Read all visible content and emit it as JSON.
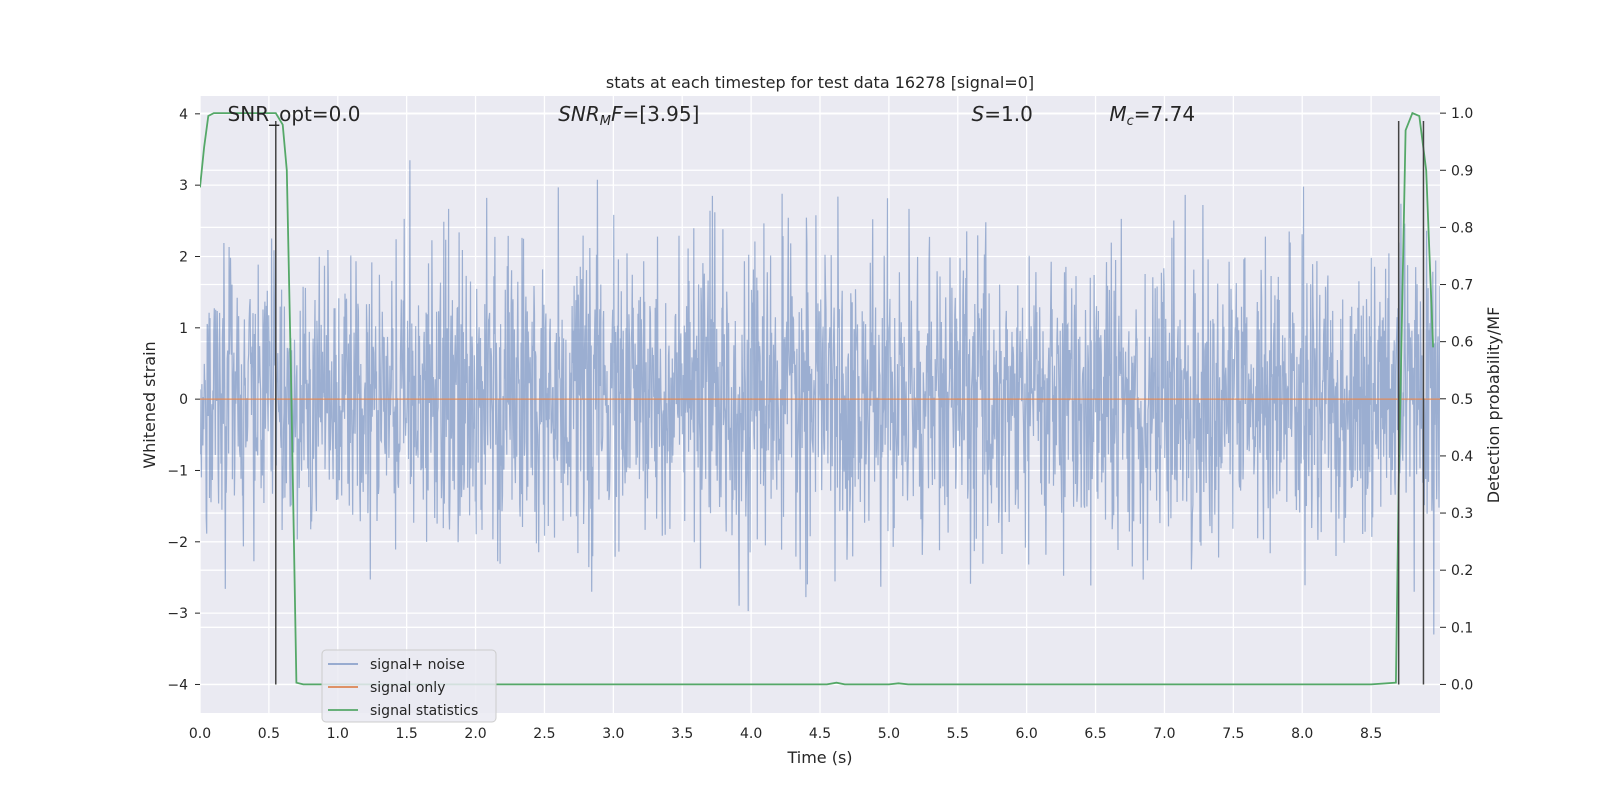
{
  "chart_data": {
    "type": "line",
    "title": "stats at each timestep for test data 16278 [signal=0]",
    "xlabel": "Time (s)",
    "ylabel_left": "Whitened strain",
    "ylabel_right": "Detection probability/MF",
    "xlim": [
      0.0,
      9.0
    ],
    "ylim_left": [
      -4.4,
      4.25
    ],
    "ylim_right": [
      -0.05,
      1.03
    ],
    "x_ticks": [
      "0.0",
      "0.5",
      "1.0",
      "1.5",
      "2.0",
      "2.5",
      "3.0",
      "3.5",
      "4.0",
      "4.5",
      "5.0",
      "5.5",
      "6.0",
      "6.5",
      "7.0",
      "7.5",
      "8.0",
      "8.5"
    ],
    "x_tick_values": [
      0.0,
      0.5,
      1.0,
      1.5,
      2.0,
      2.5,
      3.0,
      3.5,
      4.0,
      4.5,
      5.0,
      5.5,
      6.0,
      6.5,
      7.0,
      7.5,
      8.0,
      8.5
    ],
    "y_left_ticks": [
      "−4",
      "−3",
      "−2",
      "−1",
      "0",
      "1",
      "2",
      "3",
      "4"
    ],
    "y_left_tick_values": [
      -4,
      -3,
      -2,
      -1,
      0,
      1,
      2,
      3,
      4
    ],
    "y_right_ticks": [
      "0.0",
      "0.1",
      "0.2",
      "0.3",
      "0.4",
      "0.5",
      "0.6",
      "0.7",
      "0.8",
      "0.9",
      "1.0"
    ],
    "y_right_tick_values": [
      0.0,
      0.1,
      0.2,
      0.3,
      0.4,
      0.5,
      0.6,
      0.7,
      0.8,
      0.9,
      1.0
    ],
    "annotations": [
      {
        "id": "snr-opt",
        "text": "SNR_opt=0.0",
        "x": 0.2,
        "y": 4.0
      },
      {
        "id": "snr-mf",
        "text": "SNR_MF=[3.95]",
        "x": 2.6,
        "y": 4.0
      },
      {
        "id": "s-value",
        "text": "S=1.0",
        "x": 5.6,
        "y": 4.0
      },
      {
        "id": "mc-value",
        "text": "M_c=7.74",
        "x": 6.6,
        "y": 4.0
      }
    ],
    "legend_position": "lower-left",
    "series": [
      {
        "name": "signal+ noise",
        "color": "#4c72b0",
        "axis": "left",
        "description": "noise-dominated whitened strain, approx. N(0,1) across 0–9 s, peaks near ±3"
      },
      {
        "name": "signal only",
        "color": "#dd8452",
        "axis": "left",
        "x": [
          0.0,
          9.0
        ],
        "y": [
          0.0,
          0.0
        ]
      },
      {
        "name": "signal statistics",
        "color": "#55a868",
        "axis": "right",
        "x": [
          0.0,
          0.03,
          0.06,
          0.1,
          0.2,
          0.5,
          0.55,
          0.6,
          0.63,
          0.66,
          0.7,
          0.75,
          1.0,
          2.0,
          3.0,
          4.0,
          4.55,
          4.62,
          4.68,
          5.0,
          5.07,
          5.14,
          6.0,
          7.0,
          7.8,
          8.0,
          8.5,
          8.68,
          8.7,
          8.75,
          8.8,
          8.85,
          8.9,
          8.95
        ],
        "y": [
          0.87,
          0.94,
          0.995,
          1.0,
          1.0,
          1.0,
          1.0,
          0.98,
          0.9,
          0.55,
          0.003,
          0.0,
          0.0,
          0.0,
          0.0,
          0.0,
          0.0,
          0.003,
          0.0,
          0.0,
          0.002,
          0.0,
          0.0,
          0.0,
          0.0,
          0.0,
          0.0,
          0.003,
          0.35,
          0.97,
          1.0,
          0.995,
          0.9,
          0.59
        ]
      }
    ],
    "vertical_lines": [
      {
        "x": 0.55,
        "y_range": [
          -4.0,
          3.9
        ],
        "color": "#444444"
      },
      {
        "x": 8.7,
        "y_range": [
          -4.0,
          3.9
        ],
        "color": "#444444"
      },
      {
        "x": 8.88,
        "y_range": [
          -4.0,
          3.9
        ],
        "color": "#444444"
      }
    ]
  }
}
